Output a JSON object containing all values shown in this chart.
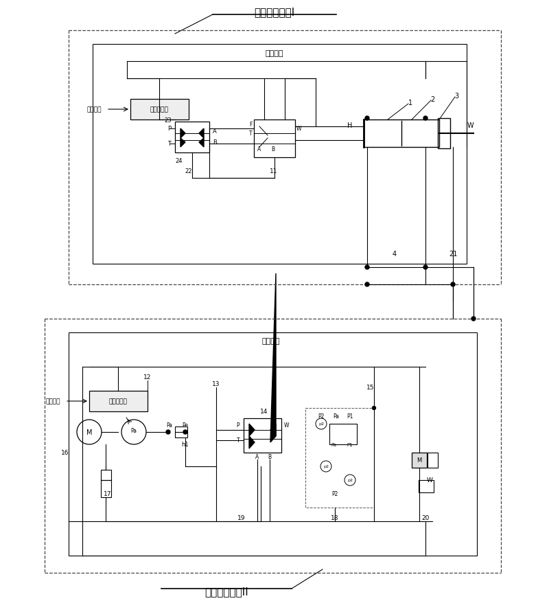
{
  "title_top": "液压控制系统I",
  "title_bottom": "液压控制系统II",
  "label_feedback_top": "位移反馈",
  "label_feedback_bottom": "位移反馈",
  "label_controller1": "第一控制器",
  "label_controller2": "第二控制器",
  "label_input1": "输入指令",
  "label_input2": "输入指令",
  "bg_color": "#ffffff",
  "box_color": "#000000",
  "line_color": "#000000",
  "dashed_color": "#555555",
  "font_size_title": 11,
  "font_size_label": 8,
  "font_size_small": 7,
  "figsize": [
    8.0,
    8.79
  ],
  "dpi": 100
}
